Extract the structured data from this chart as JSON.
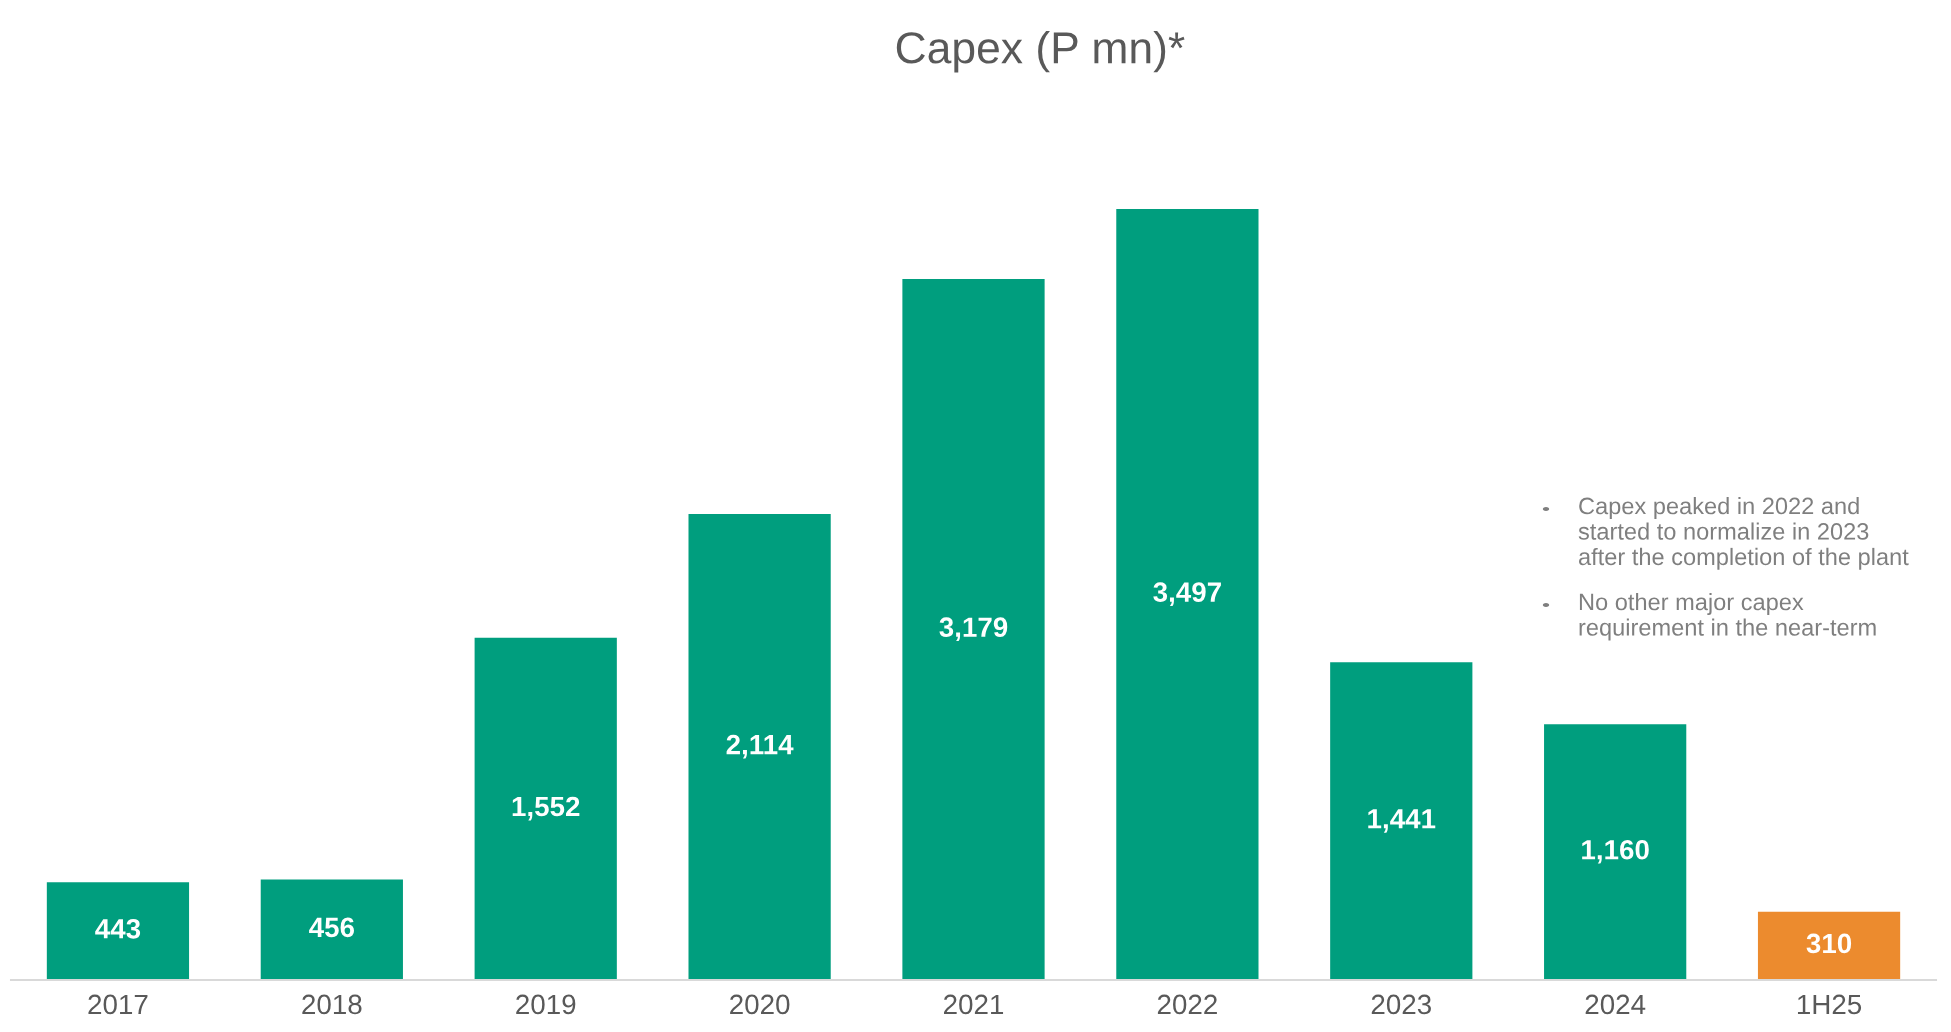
{
  "chart_data": {
    "type": "bar",
    "title": "Capex (P mn)*",
    "categories": [
      "2017",
      "2018",
      "2019",
      "2020",
      "2021",
      "2022",
      "2023",
      "2024",
      "1H25"
    ],
    "values": [
      443,
      456,
      1552,
      2114,
      3179,
      3497,
      1441,
      1160,
      310
    ],
    "colors": [
      "#009e7e",
      "#009e7e",
      "#009e7e",
      "#009e7e",
      "#009e7e",
      "#009e7e",
      "#009e7e",
      "#009e7e",
      "#ec8b2e"
    ],
    "value_labels": [
      "443",
      "456",
      "1,552",
      "2,114",
      "3,179",
      "3,497",
      "1,441",
      "1,160",
      "310"
    ],
    "annotations": [
      "Capex peaked in 2022 and\nstarted to normalize in 2023\nafter the completion of the plant",
      "No other major capex\nrequirement in the near-term"
    ]
  }
}
